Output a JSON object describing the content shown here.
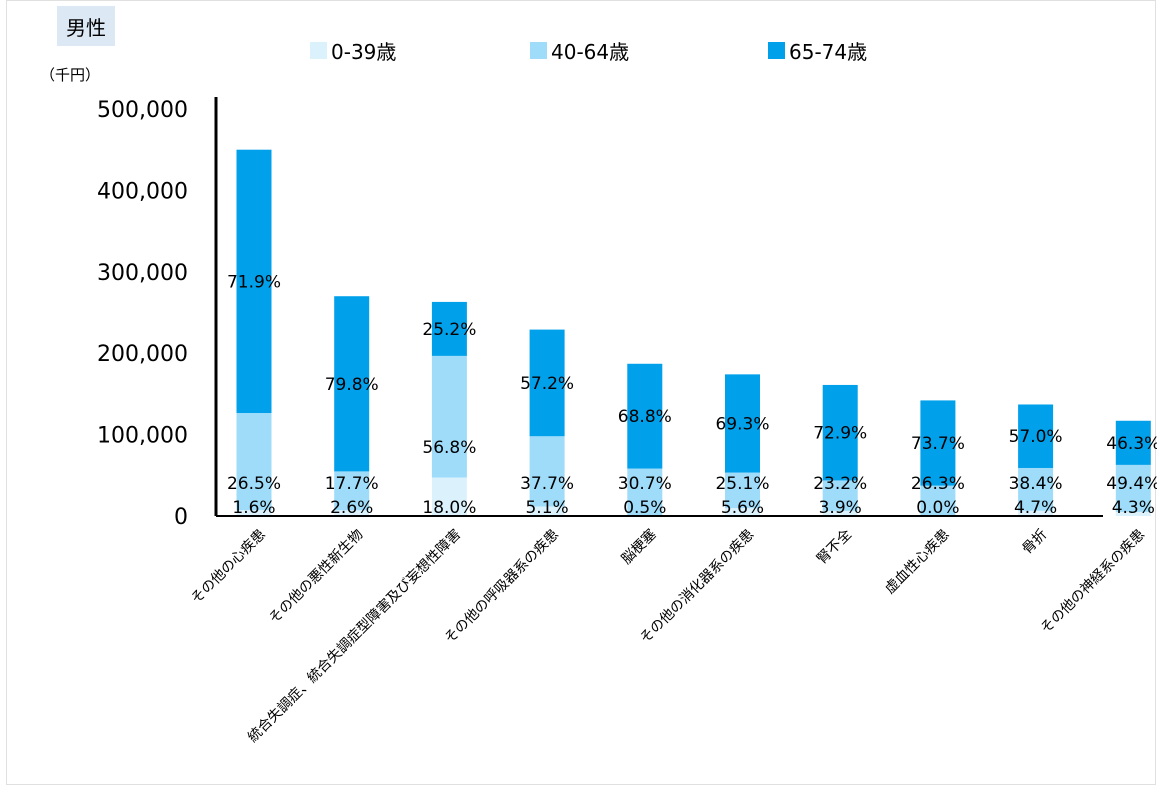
{
  "header": {
    "badge": "男性",
    "unit": "（千円）"
  },
  "colors": {
    "age_0_39": "#dbf2fd",
    "age_40_64": "#9edcfa",
    "age_65_74": "#00a0ea",
    "axis": "#000000"
  },
  "chart_data": {
    "type": "bar",
    "stacked": true,
    "title": "",
    "xlabel": "",
    "ylabel": "（千円）",
    "ylim": [
      0,
      500000
    ],
    "yticks": [
      0,
      100000,
      200000,
      300000,
      400000,
      500000
    ],
    "ytick_labels": [
      "0",
      "100,000",
      "200,000",
      "300,000",
      "400,000",
      "500,000"
    ],
    "legend_position": "top",
    "categories": [
      "その他の心疾患",
      "その他の悪性新生物",
      "統合失調症、統合失調症型障害及び妄想性障害",
      "その他の呼吸器系の疾患",
      "脳梗塞",
      "その他の消化器系の疾患",
      "腎不全",
      "虚血性心疾患",
      "骨折",
      "その他の神経系の疾患"
    ],
    "totals": [
      450000,
      270000,
      263000,
      229000,
      187000,
      174000,
      161000,
      142000,
      137000,
      117000
    ],
    "series": [
      {
        "name": "0-39歳",
        "color": "#dbf2fd",
        "percent_labels": [
          "1.6%",
          "2.6%",
          "18.0%",
          "5.1%",
          "0.5%",
          "5.6%",
          "3.9%",
          "0.0%",
          "4.7%",
          "4.3%"
        ],
        "values": [
          7200,
          7000,
          47300,
          11700,
          900,
          9700,
          6300,
          0,
          6400,
          5000
        ]
      },
      {
        "name": "40-64歳",
        "color": "#9edcfa",
        "percent_labels": [
          "26.5%",
          "17.7%",
          "56.8%",
          "37.7%",
          "30.7%",
          "25.1%",
          "23.2%",
          "26.3%",
          "38.4%",
          "49.4%"
        ],
        "values": [
          119300,
          47800,
          149400,
          86300,
          57400,
          43700,
          37400,
          37300,
          52600,
          57800
        ]
      },
      {
        "name": "65-74歳",
        "color": "#00a0ea",
        "percent_labels": [
          "71.9%",
          "79.8%",
          "25.2%",
          "57.2%",
          "68.8%",
          "69.3%",
          "72.9%",
          "73.7%",
          "57.0%",
          "46.3%"
        ],
        "values": [
          323500,
          215200,
          66300,
          131000,
          128700,
          120600,
          117300,
          104700,
          78000,
          54200
        ]
      }
    ]
  }
}
